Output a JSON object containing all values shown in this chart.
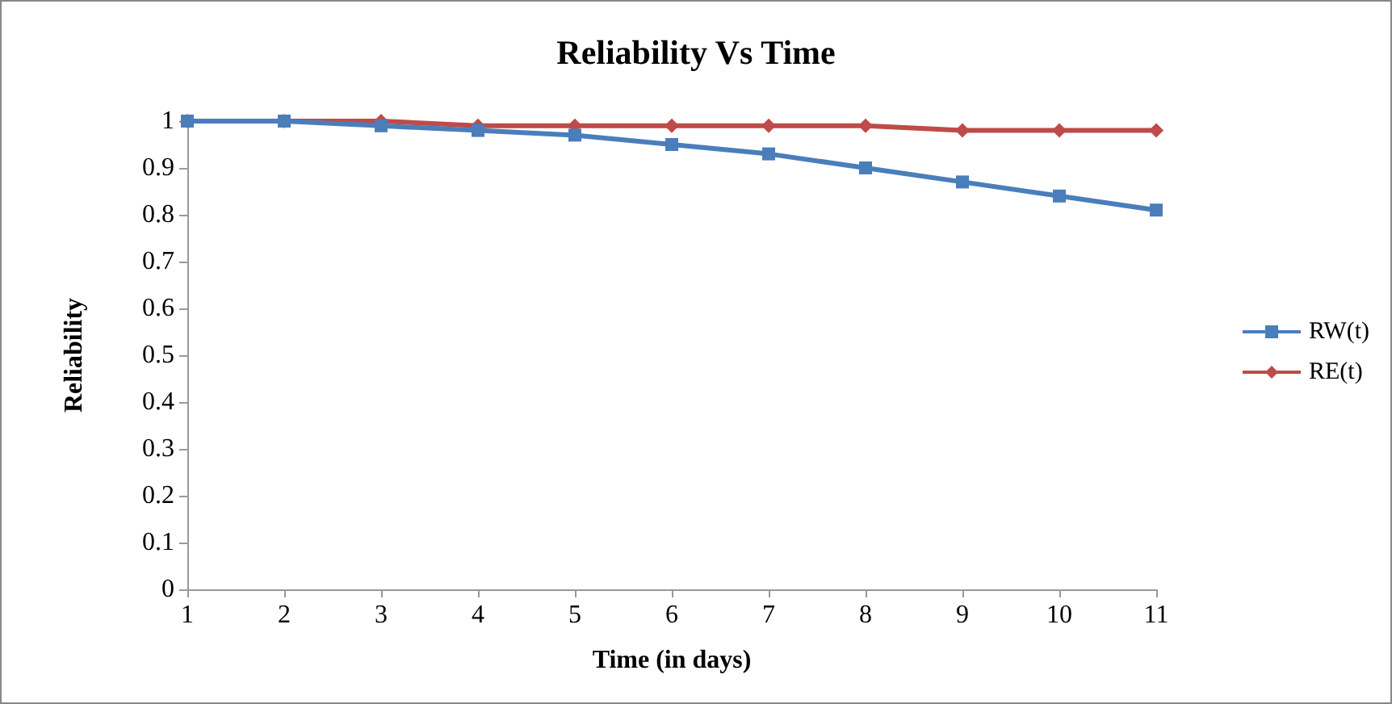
{
  "chart_data": {
    "type": "line",
    "title": "Reliability Vs Time",
    "xlabel": "Time (in days)",
    "ylabel": "Reliability",
    "categories": [
      "1",
      "2",
      "3",
      "4",
      "5",
      "6",
      "7",
      "8",
      "9",
      "10",
      "11"
    ],
    "series": [
      {
        "name": "RW(t)",
        "color": "#4a7ebb",
        "marker": "square",
        "values": [
          1.0,
          1.0,
          0.99,
          0.98,
          0.97,
          0.95,
          0.93,
          0.9,
          0.87,
          0.84,
          0.81
        ]
      },
      {
        "name": "RE(t)",
        "color": "#be4b48",
        "marker": "diamond",
        "values": [
          1.0,
          1.0,
          1.0,
          0.99,
          0.99,
          0.99,
          0.99,
          0.99,
          0.98,
          0.98,
          0.98
        ]
      }
    ],
    "ylim": [
      0,
      1
    ],
    "yticks": [
      0,
      0.1,
      0.2,
      0.3,
      0.4,
      0.5,
      0.6,
      0.7,
      0.8,
      0.9,
      1
    ],
    "grid": false,
    "legend": "right"
  }
}
